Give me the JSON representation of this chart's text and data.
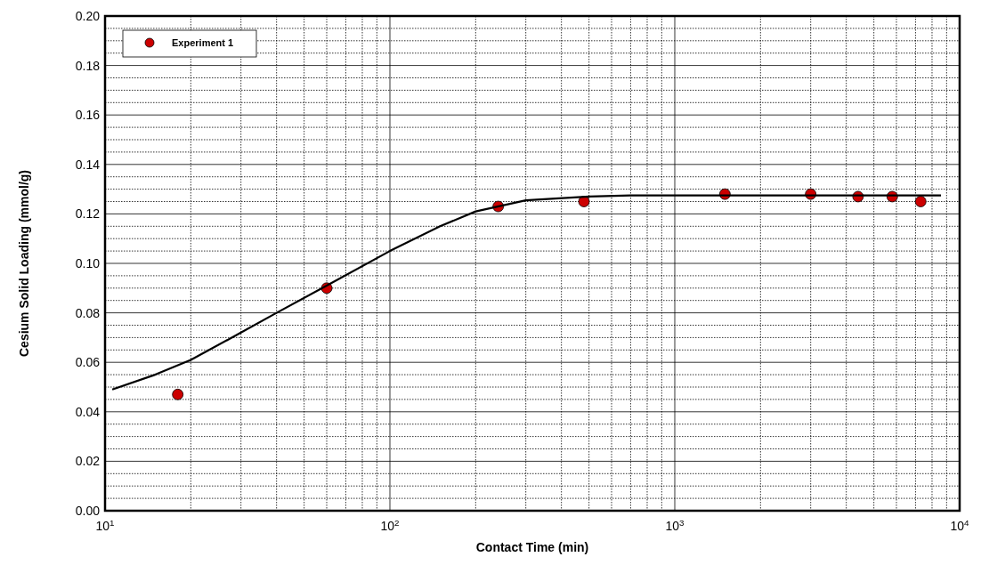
{
  "chart_data": {
    "type": "scatter",
    "xlabel": "Contact Time (min)",
    "ylabel": "Cesium Solid Loading (mmol/g)",
    "log": "x",
    "xlim": [
      10,
      10000
    ],
    "ylim": [
      0,
      0.2
    ],
    "xticks": [
      {
        "value": 10,
        "label": "10$^{1}$"
      },
      {
        "value": 100,
        "label": "10$^{2}$"
      },
      {
        "value": 1000,
        "label": "10$^{3}$"
      },
      {
        "value": 10000,
        "label": "10$^{4}$"
      }
    ],
    "yticks": [
      {
        "value": 0,
        "label": "0.00"
      },
      {
        "value": 0.02,
        "label": "0.02"
      },
      {
        "value": 0.04,
        "label": "0.04"
      },
      {
        "value": 0.06,
        "label": "0.06"
      },
      {
        "value": 0.08,
        "label": "0.08"
      },
      {
        "value": 0.1,
        "label": "0.10"
      },
      {
        "value": 0.12,
        "label": "0.12"
      },
      {
        "value": 0.14,
        "label": "0.14"
      },
      {
        "value": 0.16,
        "label": "0.16"
      },
      {
        "value": 0.18,
        "label": "0.18"
      },
      {
        "value": 0.2,
        "label": "0.20"
      }
    ],
    "grid": true,
    "legend": "top left",
    "marker": "circle",
    "series": [
      {
        "name": "Experiment 1",
        "color": "#cc0000",
        "x": [
          18,
          60,
          240,
          480,
          1500,
          3000,
          4400,
          5800,
          7300
        ],
        "values": [
          0.047,
          0.09,
          0.123,
          0.125,
          0.128,
          0.128,
          0.127,
          0.127,
          0.125
        ]
      },
      {
        "type": "line",
        "color": "#000000",
        "line_style": "solid",
        "marker": "none",
        "x": [
          10.6,
          15,
          20,
          30,
          40,
          60,
          100,
          150,
          200,
          300,
          500,
          700,
          1000,
          8600
        ],
        "values": [
          0.049,
          0.055,
          0.061,
          0.072,
          0.08,
          0.091,
          0.105,
          0.115,
          0.121,
          0.1255,
          0.127,
          0.1275,
          0.1275,
          0.1275
        ]
      }
    ]
  }
}
